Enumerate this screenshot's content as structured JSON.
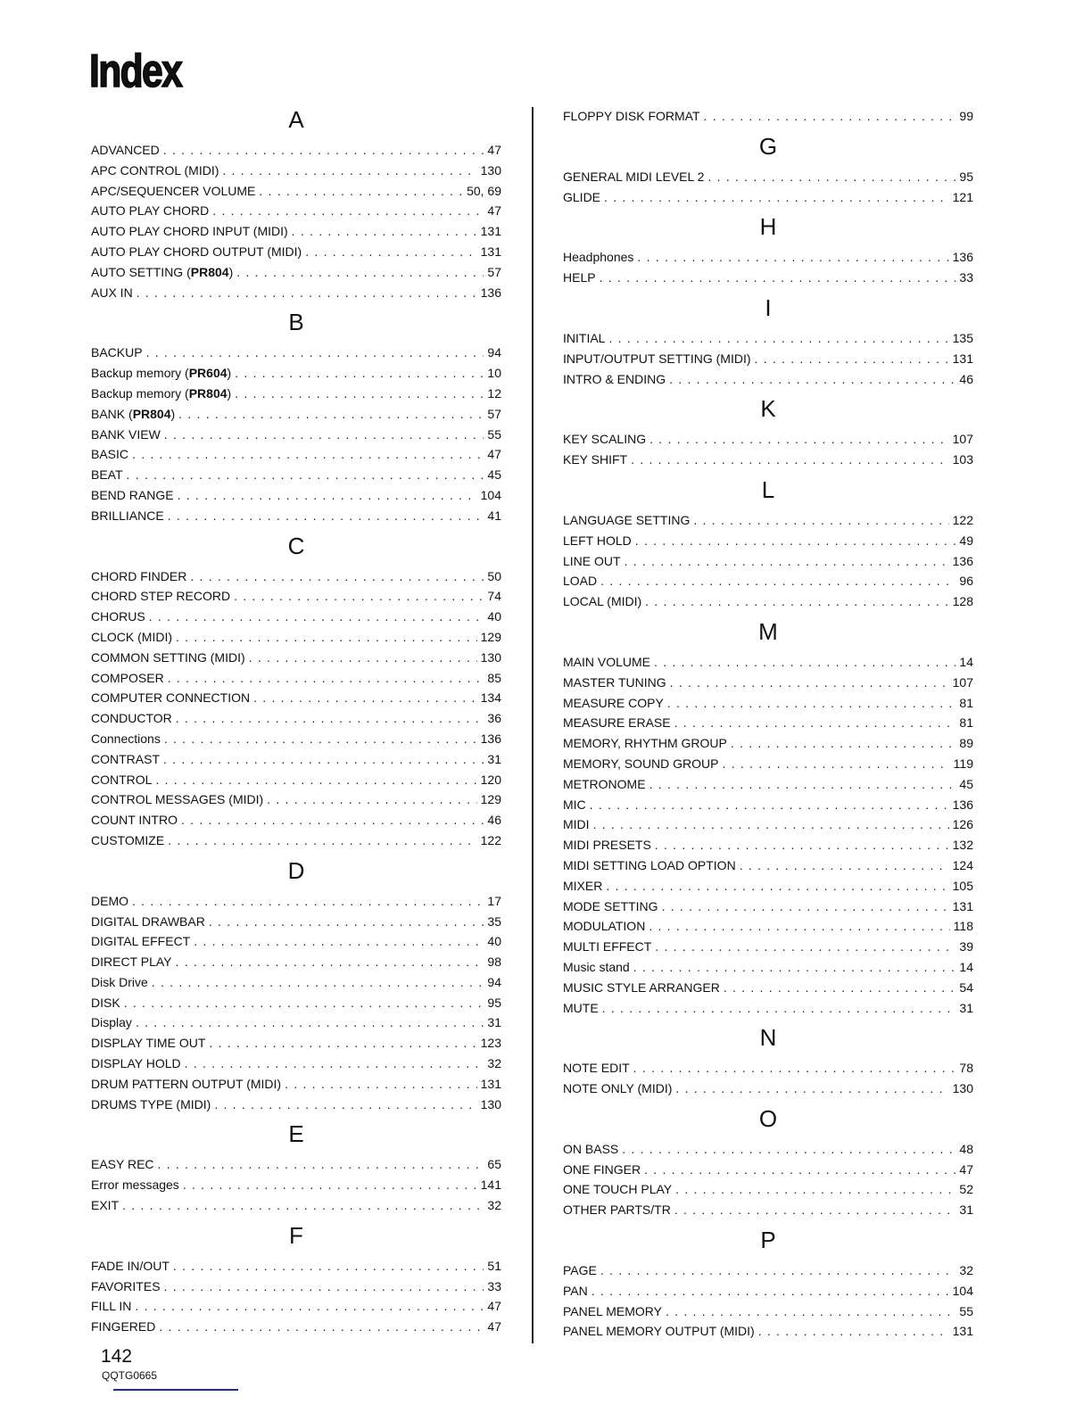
{
  "title": "Index",
  "footer": {
    "page_number": "142",
    "code": "QQTG0665"
  },
  "left_sections": [
    {
      "letter": "A",
      "entries": [
        {
          "term": "ADVANCED",
          "page": "47"
        },
        {
          "term": "APC CONTROL (MIDI)",
          "page": "130"
        },
        {
          "term": "APC/SEQUENCER VOLUME",
          "page": "50, 69"
        },
        {
          "term": "AUTO PLAY CHORD",
          "page": "47"
        },
        {
          "term": "AUTO PLAY CHORD INPUT (MIDI)",
          "page": "131"
        },
        {
          "term": "AUTO PLAY CHORD OUTPUT (MIDI)",
          "page": "131"
        },
        {
          "term": "AUTO SETTING (",
          "bold": "PR804",
          "tail": ")",
          "page": "57"
        },
        {
          "term": "AUX IN",
          "page": "136"
        }
      ]
    },
    {
      "letter": "B",
      "entries": [
        {
          "term": "BACKUP",
          "page": "94"
        },
        {
          "term": "Backup memory (",
          "bold": "PR604",
          "tail": ")",
          "page": "10"
        },
        {
          "term": "Backup memory (",
          "bold": "PR804",
          "tail": ")",
          "page": "12"
        },
        {
          "term": "BANK (",
          "bold": "PR804",
          "tail": ")",
          "page": "57"
        },
        {
          "term": "BANK VIEW",
          "page": "55"
        },
        {
          "term": "BASIC",
          "page": "47"
        },
        {
          "term": "BEAT",
          "page": "45"
        },
        {
          "term": "BEND RANGE",
          "page": "104"
        },
        {
          "term": "BRILLIANCE",
          "page": "41"
        }
      ]
    },
    {
      "letter": "C",
      "entries": [
        {
          "term": "CHORD FINDER",
          "page": "50"
        },
        {
          "term": "CHORD STEP RECORD",
          "page": "74"
        },
        {
          "term": "CHORUS",
          "page": "40"
        },
        {
          "term": "CLOCK (MIDI)",
          "page": "129"
        },
        {
          "term": "COMMON SETTING (MIDI)",
          "page": "130"
        },
        {
          "term": "COMPOSER",
          "page": "85"
        },
        {
          "term": "COMPUTER CONNECTION",
          "page": "134"
        },
        {
          "term": "CONDUCTOR",
          "page": "36"
        },
        {
          "term": "Connections",
          "page": "136"
        },
        {
          "term": "CONTRAST",
          "page": "31"
        },
        {
          "term": "CONTROL",
          "page": "120"
        },
        {
          "term": "CONTROL MESSAGES (MIDI)",
          "page": "129"
        },
        {
          "term": "COUNT INTRO",
          "page": "46"
        },
        {
          "term": "CUSTOMIZE",
          "page": "122"
        }
      ]
    },
    {
      "letter": "D",
      "entries": [
        {
          "term": "DEMO",
          "page": "17"
        },
        {
          "term": "DIGITAL DRAWBAR",
          "page": "35"
        },
        {
          "term": "DIGITAL EFFECT",
          "page": "40"
        },
        {
          "term": "DIRECT PLAY",
          "page": "98"
        },
        {
          "term": "Disk Drive",
          "page": "94"
        },
        {
          "term": "DISK",
          "page": "95"
        },
        {
          "term": "Display",
          "page": "31"
        },
        {
          "term": "DISPLAY TIME OUT",
          "page": "123"
        },
        {
          "term": "DISPLAY HOLD",
          "page": "32"
        },
        {
          "term": "DRUM PATTERN OUTPUT (MIDI)",
          "page": "131"
        },
        {
          "term": "DRUMS TYPE (MIDI)",
          "page": "130"
        }
      ]
    },
    {
      "letter": "E",
      "entries": [
        {
          "term": "EASY REC",
          "page": "65"
        },
        {
          "term": "Error messages",
          "page": "141"
        },
        {
          "term": "EXIT",
          "page": "32"
        }
      ]
    },
    {
      "letter": "F",
      "entries": [
        {
          "term": "FADE IN/OUT",
          "page": "51"
        },
        {
          "term": "FAVORITES",
          "page": "33"
        },
        {
          "term": "FILL IN",
          "page": "47"
        },
        {
          "term": "FINGERED",
          "page": "47"
        }
      ]
    }
  ],
  "right_sections": [
    {
      "letter": "",
      "entries": [
        {
          "term": "FLOPPY DISK FORMAT",
          "page": "99"
        }
      ]
    },
    {
      "letter": "G",
      "entries": [
        {
          "term": "GENERAL MIDI LEVEL 2",
          "page": "95"
        },
        {
          "term": "GLIDE",
          "page": "121"
        }
      ]
    },
    {
      "letter": "H",
      "entries": [
        {
          "term": "Headphones",
          "page": "136"
        },
        {
          "term": "HELP",
          "page": "33"
        }
      ]
    },
    {
      "letter": "I",
      "entries": [
        {
          "term": "INITIAL",
          "page": "135"
        },
        {
          "term": "INPUT/OUTPUT SETTING (MIDI)",
          "page": "131"
        },
        {
          "term": "INTRO & ENDING",
          "page": "46"
        }
      ]
    },
    {
      "letter": "K",
      "entries": [
        {
          "term": "KEY SCALING",
          "page": "107"
        },
        {
          "term": "KEY SHIFT",
          "page": "103"
        }
      ]
    },
    {
      "letter": "L",
      "entries": [
        {
          "term": "LANGUAGE SETTING",
          "page": "122"
        },
        {
          "term": "LEFT HOLD",
          "page": "49"
        },
        {
          "term": "LINE OUT",
          "page": "136"
        },
        {
          "term": "LOAD",
          "page": "96"
        },
        {
          "term": "LOCAL (MIDI)",
          "page": "128"
        }
      ]
    },
    {
      "letter": "M",
      "entries": [
        {
          "term": "MAIN VOLUME",
          "page": "14"
        },
        {
          "term": "MASTER TUNING",
          "page": "107"
        },
        {
          "term": "MEASURE COPY",
          "page": "81"
        },
        {
          "term": "MEASURE ERASE",
          "page": "81"
        },
        {
          "term": "MEMORY, RHYTHM GROUP",
          "page": "89"
        },
        {
          "term": "MEMORY, SOUND GROUP",
          "page": "119"
        },
        {
          "term": "METRONOME",
          "page": "45"
        },
        {
          "term": "MIC",
          "page": "136"
        },
        {
          "term": "MIDI",
          "page": "126"
        },
        {
          "term": "MIDI PRESETS",
          "page": "132"
        },
        {
          "term": "MIDI SETTING LOAD OPTION",
          "page": "124"
        },
        {
          "term": "MIXER",
          "page": "105"
        },
        {
          "term": "MODE SETTING",
          "page": "131"
        },
        {
          "term": "MODULATION",
          "page": "118"
        },
        {
          "term": "MULTI EFFECT",
          "page": "39"
        },
        {
          "term": "Music stand",
          "page": "14"
        },
        {
          "term": "MUSIC STYLE ARRANGER",
          "page": "54"
        },
        {
          "term": "MUTE",
          "page": "31"
        }
      ]
    },
    {
      "letter": "N",
      "entries": [
        {
          "term": "NOTE EDIT",
          "page": "78"
        },
        {
          "term": "NOTE ONLY (MIDI)",
          "page": "130"
        }
      ]
    },
    {
      "letter": "O",
      "entries": [
        {
          "term": "ON BASS",
          "page": "48"
        },
        {
          "term": "ONE FINGER",
          "page": "47"
        },
        {
          "term": "ONE TOUCH PLAY",
          "page": "52"
        },
        {
          "term": "OTHER PARTS/TR",
          "page": "31"
        }
      ]
    },
    {
      "letter": "P",
      "entries": [
        {
          "term": "PAGE",
          "page": "32"
        },
        {
          "term": "PAN",
          "page": "104"
        },
        {
          "term": "PANEL MEMORY",
          "page": "55"
        },
        {
          "term": "PANEL MEMORY OUTPUT (MIDI)",
          "page": "131"
        }
      ]
    }
  ]
}
